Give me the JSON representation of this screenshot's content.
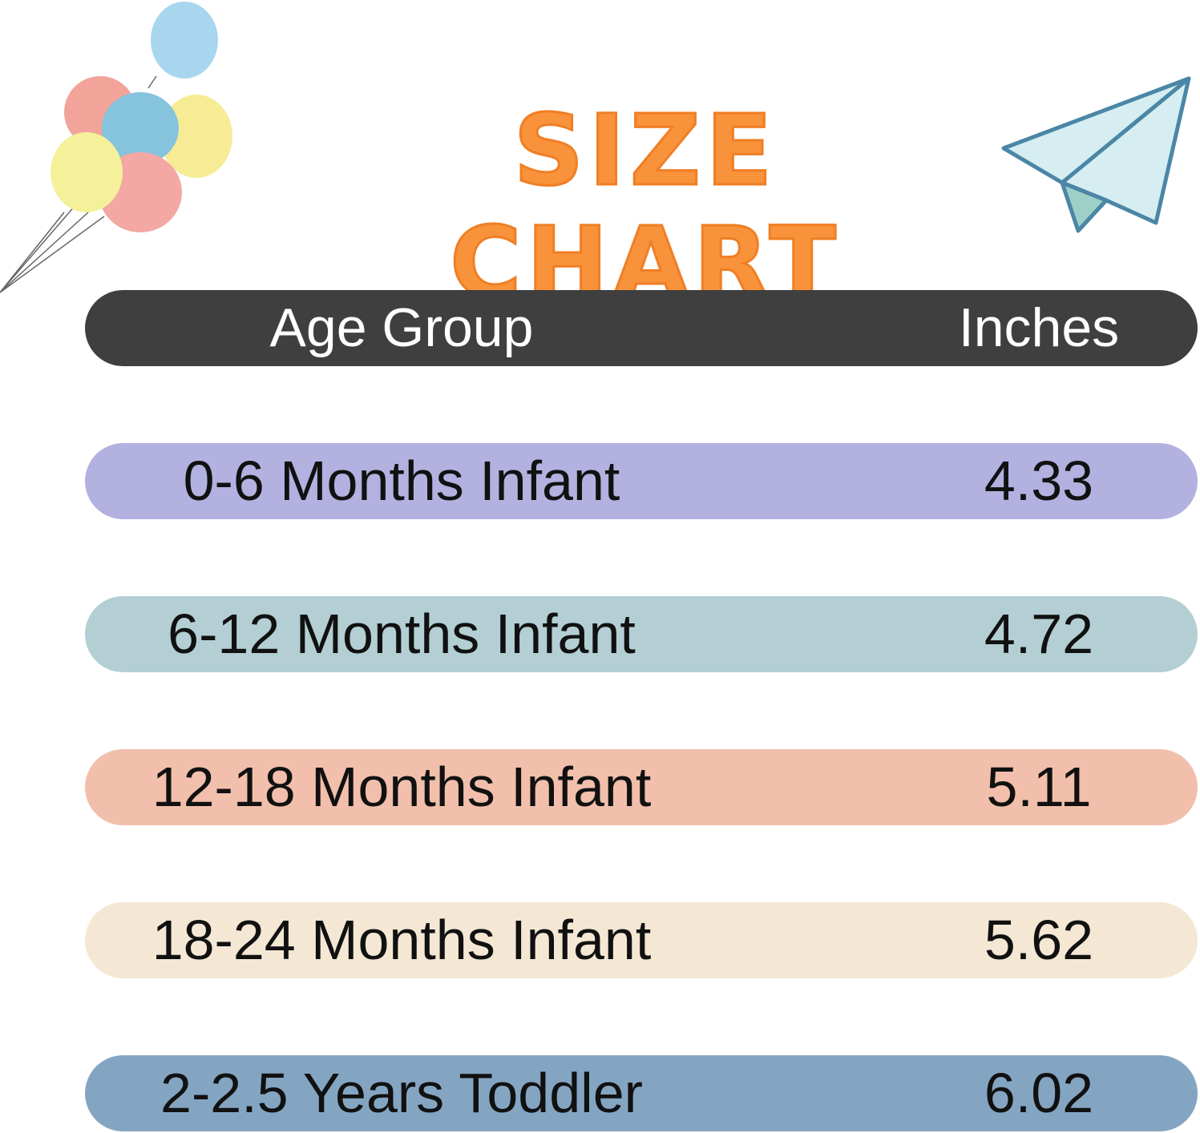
{
  "title": "SIZE CHART",
  "header": {
    "age_label": "Age Group",
    "value_label": "Inches",
    "color": "#3f3f3f"
  },
  "rows": [
    {
      "age": "0-6 Months Infant",
      "inches": "4.33",
      "color": "#b3b1e0"
    },
    {
      "age": "6-12 Months Infant",
      "inches": "4.72",
      "color": "#b3cfd4"
    },
    {
      "age": "12-18 Months Infant",
      "inches": "5.11",
      "color": "#f1bfab"
    },
    {
      "age": "18-24 Months Infant",
      "inches": "5.62",
      "color": "#f4e8d4"
    },
    {
      "age": "2-2.5 Years Toddler",
      "inches": "6.02",
      "color": "#84a5c2"
    }
  ],
  "title_color": "#f8933b",
  "decorations": [
    "balloons-icon",
    "paper-plane-icon"
  ]
}
